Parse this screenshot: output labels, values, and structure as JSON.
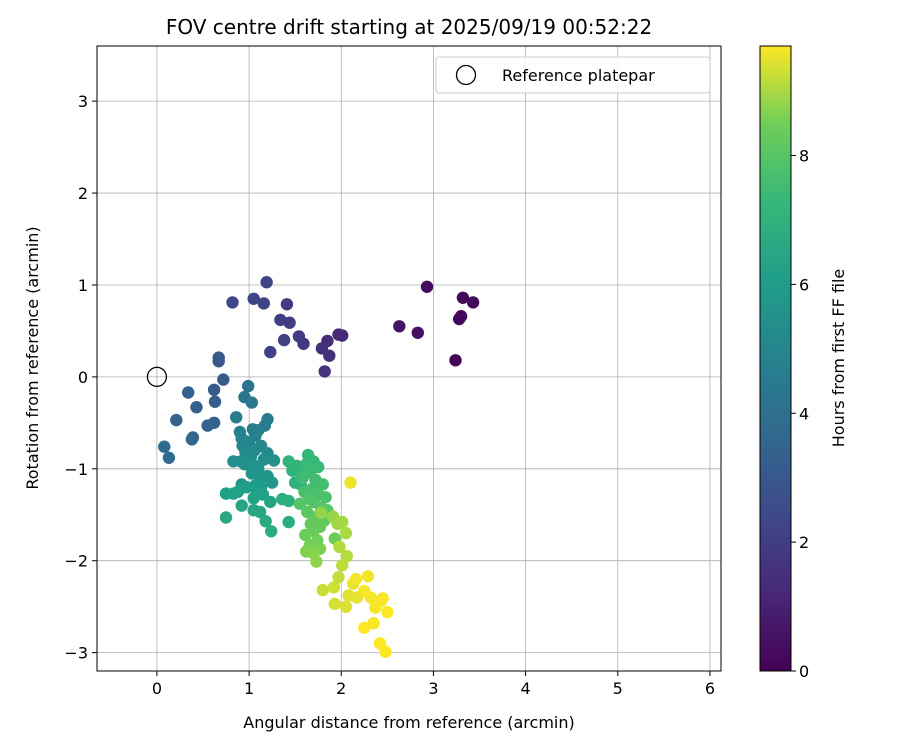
{
  "chart_data": {
    "type": "scatter",
    "title": "FOV centre drift starting at 2025/09/19 00:52:22",
    "xlabel": "Angular distance from reference (arcmin)",
    "ylabel": "Rotation from reference (arcmin)",
    "xlim": [
      -0.65,
      6.12
    ],
    "ylim": [
      -3.2,
      3.6
    ],
    "xticks": [
      0,
      1,
      2,
      3,
      4,
      5,
      6
    ],
    "yticks": [
      -3,
      -2,
      -1,
      0,
      1,
      2,
      3
    ],
    "xtick_labels": [
      "0",
      "1",
      "2",
      "3",
      "4",
      "5",
      "6"
    ],
    "ytick_labels": [
      "−3",
      "−2",
      "−1",
      "0",
      "1",
      "2",
      "3"
    ],
    "grid": true,
    "legend": {
      "location": "upper right",
      "label": "Reference platepar"
    },
    "reference_point": {
      "x": 0,
      "y": 0
    },
    "colorbar": {
      "label": "Hours from first FF file",
      "colormap": "viridis",
      "range": [
        0,
        9.7
      ],
      "ticks": [
        0,
        2,
        4,
        6,
        8
      ],
      "tick_labels": [
        "0",
        "2",
        "4",
        "6",
        "8"
      ]
    },
    "points": [
      [
        3.24,
        0.18,
        0.1
      ],
      [
        3.28,
        0.63,
        0.15
      ],
      [
        3.3,
        0.66,
        0.2
      ],
      [
        3.32,
        0.86,
        0.25
      ],
      [
        3.43,
        0.81,
        0.3
      ],
      [
        2.93,
        0.98,
        0.35
      ],
      [
        2.83,
        0.48,
        0.5
      ],
      [
        2.63,
        0.55,
        0.55
      ],
      [
        2.01,
        0.45,
        1.2
      ],
      [
        1.97,
        0.46,
        1.3
      ],
      [
        1.85,
        0.39,
        1.4
      ],
      [
        1.87,
        0.23,
        1.5
      ],
      [
        1.79,
        0.31,
        1.55
      ],
      [
        1.82,
        0.06,
        1.6
      ],
      [
        1.59,
        0.36,
        1.8
      ],
      [
        1.54,
        0.44,
        1.9
      ],
      [
        1.41,
        0.79,
        1.95
      ],
      [
        1.44,
        0.59,
        2.0
      ],
      [
        1.34,
        0.62,
        2.05
      ],
      [
        1.38,
        0.4,
        2.1
      ],
      [
        1.23,
        0.27,
        2.15
      ],
      [
        1.19,
        1.03,
        2.2
      ],
      [
        1.16,
        0.8,
        2.25
      ],
      [
        1.05,
        0.85,
        2.3
      ],
      [
        0.82,
        0.81,
        2.4
      ],
      [
        0.67,
        0.17,
        3.0
      ],
      [
        0.67,
        0.21,
        3.05
      ],
      [
        0.72,
        -0.03,
        3.1
      ],
      [
        0.62,
        -0.14,
        3.15
      ],
      [
        0.63,
        -0.27,
        3.2
      ],
      [
        0.43,
        -0.33,
        3.3
      ],
      [
        0.34,
        -0.17,
        3.35
      ],
      [
        0.21,
        -0.47,
        3.4
      ],
      [
        0.55,
        -0.53,
        3.45
      ],
      [
        0.62,
        -0.5,
        3.5
      ],
      [
        0.38,
        -0.68,
        3.55
      ],
      [
        0.39,
        -0.66,
        3.6
      ],
      [
        0.08,
        -0.76,
        3.7
      ],
      [
        0.13,
        -0.88,
        3.75
      ],
      [
        0.99,
        -0.1,
        4.2
      ],
      [
        0.95,
        -0.22,
        4.3
      ],
      [
        1.03,
        -0.28,
        4.4
      ],
      [
        0.86,
        -0.44,
        4.5
      ],
      [
        1.2,
        -0.46,
        4.55
      ],
      [
        1.17,
        -0.53,
        4.6
      ],
      [
        1.1,
        -0.58,
        4.65
      ],
      [
        1.04,
        -0.57,
        4.7
      ],
      [
        0.9,
        -0.6,
        4.75
      ],
      [
        1.07,
        -0.64,
        4.8
      ],
      [
        0.92,
        -0.67,
        4.85
      ],
      [
        0.96,
        -0.7,
        4.9
      ],
      [
        1.0,
        -0.72,
        4.95
      ],
      [
        0.93,
        -0.75,
        5.0
      ],
      [
        1.13,
        -0.75,
        5.05
      ],
      [
        1.06,
        -0.8,
        5.1
      ],
      [
        1.2,
        -0.83,
        5.15
      ],
      [
        0.96,
        -0.82,
        5.2
      ],
      [
        1.02,
        -0.87,
        5.25
      ],
      [
        0.91,
        -0.92,
        5.3
      ],
      [
        0.83,
        -0.92,
        5.35
      ],
      [
        1.16,
        -0.9,
        5.4
      ],
      [
        1.27,
        -0.91,
        5.45
      ],
      [
        0.95,
        -0.95,
        5.5
      ],
      [
        1.06,
        -0.97,
        5.55
      ],
      [
        1.1,
        -1.0,
        5.6
      ],
      [
        1.03,
        -1.05,
        5.65
      ],
      [
        1.2,
        -1.08,
        5.7
      ],
      [
        1.12,
        -1.12,
        5.75
      ],
      [
        1.25,
        -1.15,
        5.8
      ],
      [
        0.92,
        -1.17,
        5.85
      ],
      [
        1.07,
        -1.18,
        5.9
      ],
      [
        1.13,
        -1.2,
        5.95
      ],
      [
        0.97,
        -1.2,
        6.0
      ],
      [
        1.08,
        -1.23,
        6.05
      ],
      [
        0.88,
        -1.25,
        6.1
      ],
      [
        0.75,
        -1.27,
        6.15
      ],
      [
        0.83,
        -1.27,
        6.2
      ],
      [
        1.15,
        -1.28,
        6.25
      ],
      [
        1.05,
        -1.32,
        6.3
      ],
      [
        1.23,
        -1.36,
        6.35
      ],
      [
        0.92,
        -1.4,
        6.4
      ],
      [
        1.05,
        -1.45,
        6.45
      ],
      [
        1.12,
        -1.47,
        6.5
      ],
      [
        0.75,
        -1.53,
        6.55
      ],
      [
        1.18,
        -1.57,
        6.6
      ],
      [
        1.43,
        -1.58,
        6.7
      ],
      [
        1.24,
        -1.68,
        6.8
      ],
      [
        1.36,
        -1.33,
        6.85
      ],
      [
        1.43,
        -1.35,
        6.9
      ],
      [
        1.5,
        -1.15,
        6.95
      ],
      [
        1.56,
        -1.17,
        7.0
      ],
      [
        1.47,
        -1.02,
        7.05
      ],
      [
        1.52,
        -0.97,
        7.1
      ],
      [
        1.43,
        -0.92,
        7.15
      ],
      [
        1.57,
        -1.05,
        7.2
      ],
      [
        1.64,
        -0.85,
        7.25
      ],
      [
        1.7,
        -0.92,
        7.3
      ],
      [
        1.62,
        -0.95,
        7.35
      ],
      [
        1.75,
        -0.98,
        7.4
      ],
      [
        1.66,
        -1.04,
        7.45
      ],
      [
        1.58,
        -1.1,
        7.5
      ],
      [
        1.72,
        -1.12,
        7.55
      ],
      [
        1.8,
        -1.17,
        7.6
      ],
      [
        1.68,
        -1.22,
        7.65
      ],
      [
        1.6,
        -1.25,
        7.7
      ],
      [
        1.75,
        -1.28,
        7.75
      ],
      [
        1.83,
        -1.31,
        7.8
      ],
      [
        1.65,
        -1.33,
        7.85
      ],
      [
        1.7,
        -1.36,
        7.9
      ],
      [
        1.55,
        -1.38,
        7.95
      ],
      [
        1.78,
        -1.42,
        8.0
      ],
      [
        1.85,
        -1.45,
        8.05
      ],
      [
        1.63,
        -1.47,
        8.1
      ],
      [
        1.73,
        -1.52,
        8.15
      ],
      [
        1.82,
        -1.56,
        8.2
      ],
      [
        1.67,
        -1.6,
        8.25
      ],
      [
        1.77,
        -1.63,
        8.3
      ],
      [
        1.7,
        -1.68,
        8.35
      ],
      [
        1.61,
        -1.72,
        8.4
      ],
      [
        1.93,
        -1.76,
        8.45
      ],
      [
        1.74,
        -1.78,
        8.5
      ],
      [
        1.66,
        -1.83,
        8.55
      ],
      [
        1.77,
        -1.87,
        8.6
      ],
      [
        1.62,
        -1.9,
        8.65
      ],
      [
        1.7,
        -1.92,
        8.7
      ],
      [
        1.73,
        -2.01,
        8.75
      ],
      [
        1.78,
        -1.48,
        8.8
      ],
      [
        1.91,
        -1.52,
        8.85
      ],
      [
        1.96,
        -1.6,
        8.9
      ],
      [
        2.01,
        -1.58,
        8.95
      ],
      [
        2.05,
        -1.7,
        9.0
      ],
      [
        1.98,
        -1.85,
        9.05
      ],
      [
        2.06,
        -1.95,
        9.1
      ],
      [
        2.01,
        -2.05,
        9.15
      ],
      [
        1.97,
        -2.18,
        9.2
      ],
      [
        1.8,
        -2.32,
        9.25
      ],
      [
        1.92,
        -2.29,
        9.3
      ],
      [
        1.93,
        -2.47,
        9.35
      ],
      [
        2.05,
        -2.5,
        9.4
      ],
      [
        2.08,
        -2.38,
        9.45
      ],
      [
        2.17,
        -2.4,
        9.5
      ],
      [
        2.13,
        -2.25,
        9.55
      ],
      [
        2.29,
        -2.17,
        9.6
      ],
      [
        2.16,
        -2.2,
        9.62
      ],
      [
        2.25,
        -2.33,
        9.63
      ],
      [
        2.32,
        -2.4,
        9.64
      ],
      [
        2.37,
        -2.51,
        9.65
      ],
      [
        2.43,
        -2.44,
        9.66
      ],
      [
        2.45,
        -2.41,
        9.67
      ],
      [
        2.5,
        -2.56,
        9.68
      ],
      [
        2.35,
        -2.68,
        9.69
      ],
      [
        2.25,
        -2.73,
        9.7
      ],
      [
        2.42,
        -2.9,
        9.7
      ],
      [
        2.48,
        -2.99,
        9.7
      ],
      [
        2.1,
        -1.15,
        9.55
      ]
    ]
  }
}
